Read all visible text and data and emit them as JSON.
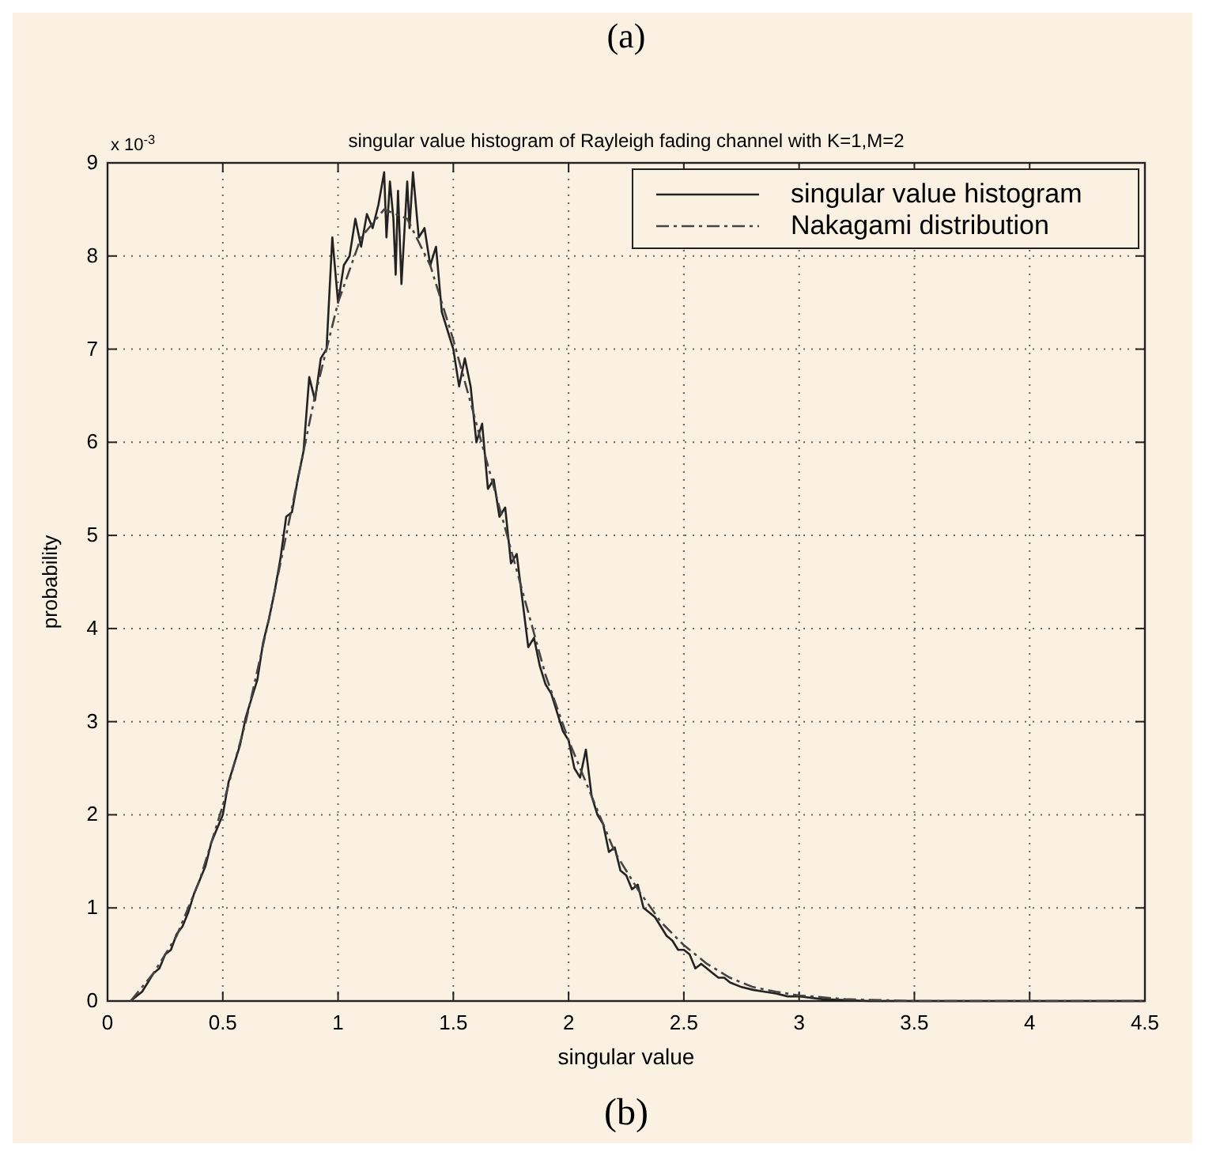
{
  "chart_data": {
    "type": "line",
    "title": "singular value histogram of Rayleigh fading channel with K=1,M=2",
    "xlabel": "singular value",
    "ylabel": "probability",
    "annotations": [
      "(a)",
      "x 10$^{-3}$",
      "(b)"
    ],
    "xlim": [
      0,
      4.5
    ],
    "xticks": [
      0,
      0.5,
      1,
      1.5,
      2,
      2.5,
      3,
      3.5,
      4,
      4.5
    ],
    "ylim": [
      0,
      9
    ],
    "yticks": [
      0,
      1,
      2,
      3,
      4,
      5,
      6,
      7,
      8,
      9
    ],
    "grid": true,
    "legend": "top right",
    "series": [
      {
        "name": "singular value histogram",
        "color": "#222222",
        "line_style": "solid",
        "x": [
          0.1,
          0.125,
          0.15,
          0.175,
          0.2,
          0.225,
          0.25,
          0.275,
          0.3,
          0.325,
          0.35,
          0.375,
          0.4,
          0.425,
          0.45,
          0.475,
          0.5,
          0.525,
          0.55,
          0.575,
          0.6,
          0.625,
          0.65,
          0.675,
          0.7,
          0.725,
          0.75,
          0.775,
          0.8,
          0.825,
          0.85,
          0.875,
          0.9,
          0.925,
          0.95,
          0.975,
          1.0,
          1.025,
          1.05,
          1.075,
          1.1,
          1.125,
          1.15,
          1.175,
          1.2,
          1.21,
          1.225,
          1.24,
          1.25,
          1.26,
          1.275,
          1.3,
          1.31,
          1.325,
          1.35,
          1.375,
          1.4,
          1.425,
          1.45,
          1.475,
          1.5,
          1.525,
          1.55,
          1.575,
          1.6,
          1.625,
          1.65,
          1.675,
          1.7,
          1.725,
          1.75,
          1.775,
          1.8,
          1.825,
          1.85,
          1.875,
          1.9,
          1.925,
          1.95,
          1.975,
          2.0,
          2.025,
          2.05,
          2.075,
          2.1,
          2.125,
          2.15,
          2.175,
          2.2,
          2.225,
          2.25,
          2.275,
          2.3,
          2.325,
          2.35,
          2.375,
          2.4,
          2.425,
          2.45,
          2.475,
          2.5,
          2.525,
          2.55,
          2.575,
          2.6,
          2.625,
          2.65,
          2.675,
          2.7,
          2.75,
          2.8,
          2.85,
          2.9,
          2.95,
          3.0,
          3.1,
          3.2,
          3.3,
          3.5,
          4.0,
          4.5
        ],
        "values": [
          0,
          0.05,
          0.1,
          0.2,
          0.3,
          0.35,
          0.5,
          0.55,
          0.72,
          0.8,
          0.95,
          1.15,
          1.3,
          1.45,
          1.7,
          1.85,
          2.0,
          2.35,
          2.55,
          2.75,
          3.05,
          3.25,
          3.45,
          3.85,
          4.1,
          4.4,
          4.75,
          5.2,
          5.25,
          5.6,
          5.9,
          6.7,
          6.45,
          6.9,
          7.0,
          8.2,
          7.5,
          7.9,
          8.0,
          8.4,
          8.1,
          8.45,
          8.3,
          8.55,
          8.9,
          8.2,
          8.8,
          8.4,
          7.8,
          8.7,
          7.7,
          8.8,
          8.3,
          8.9,
          8.2,
          8.3,
          7.9,
          8.1,
          7.4,
          7.2,
          7.0,
          6.6,
          6.9,
          6.6,
          6.0,
          6.2,
          5.5,
          5.6,
          5.2,
          5.3,
          4.7,
          4.8,
          4.3,
          3.8,
          3.9,
          3.6,
          3.4,
          3.3,
          3.1,
          2.9,
          2.8,
          2.5,
          2.4,
          2.7,
          2.2,
          2.0,
          1.9,
          1.6,
          1.65,
          1.4,
          1.35,
          1.2,
          1.25,
          1.0,
          0.95,
          0.9,
          0.8,
          0.7,
          0.65,
          0.55,
          0.55,
          0.5,
          0.35,
          0.4,
          0.35,
          0.3,
          0.25,
          0.25,
          0.2,
          0.15,
          0.12,
          0.1,
          0.08,
          0.05,
          0.05,
          0.02,
          0.01,
          0,
          0,
          0,
          0
        ]
      },
      {
        "name": "Nakagami distribution",
        "color": "#444444",
        "line_style": "dashed",
        "x": [
          0.1,
          0.2,
          0.3,
          0.4,
          0.5,
          0.6,
          0.7,
          0.8,
          0.9,
          1.0,
          1.1,
          1.2,
          1.3,
          1.4,
          1.5,
          1.6,
          1.7,
          1.8,
          1.9,
          2.0,
          2.1,
          2.2,
          2.3,
          2.4,
          2.5,
          2.6,
          2.7,
          2.8,
          2.9,
          3.0,
          3.2,
          3.5,
          4.0,
          4.5
        ],
        "values": [
          0,
          0.3,
          0.7,
          1.3,
          2.1,
          3.0,
          4.1,
          5.3,
          6.5,
          7.5,
          8.2,
          8.5,
          8.4,
          7.9,
          7.1,
          6.2,
          5.3,
          4.4,
          3.5,
          2.8,
          2.2,
          1.6,
          1.2,
          0.85,
          0.6,
          0.4,
          0.25,
          0.15,
          0.1,
          0.06,
          0.02,
          0,
          0,
          0
        ]
      }
    ]
  }
}
